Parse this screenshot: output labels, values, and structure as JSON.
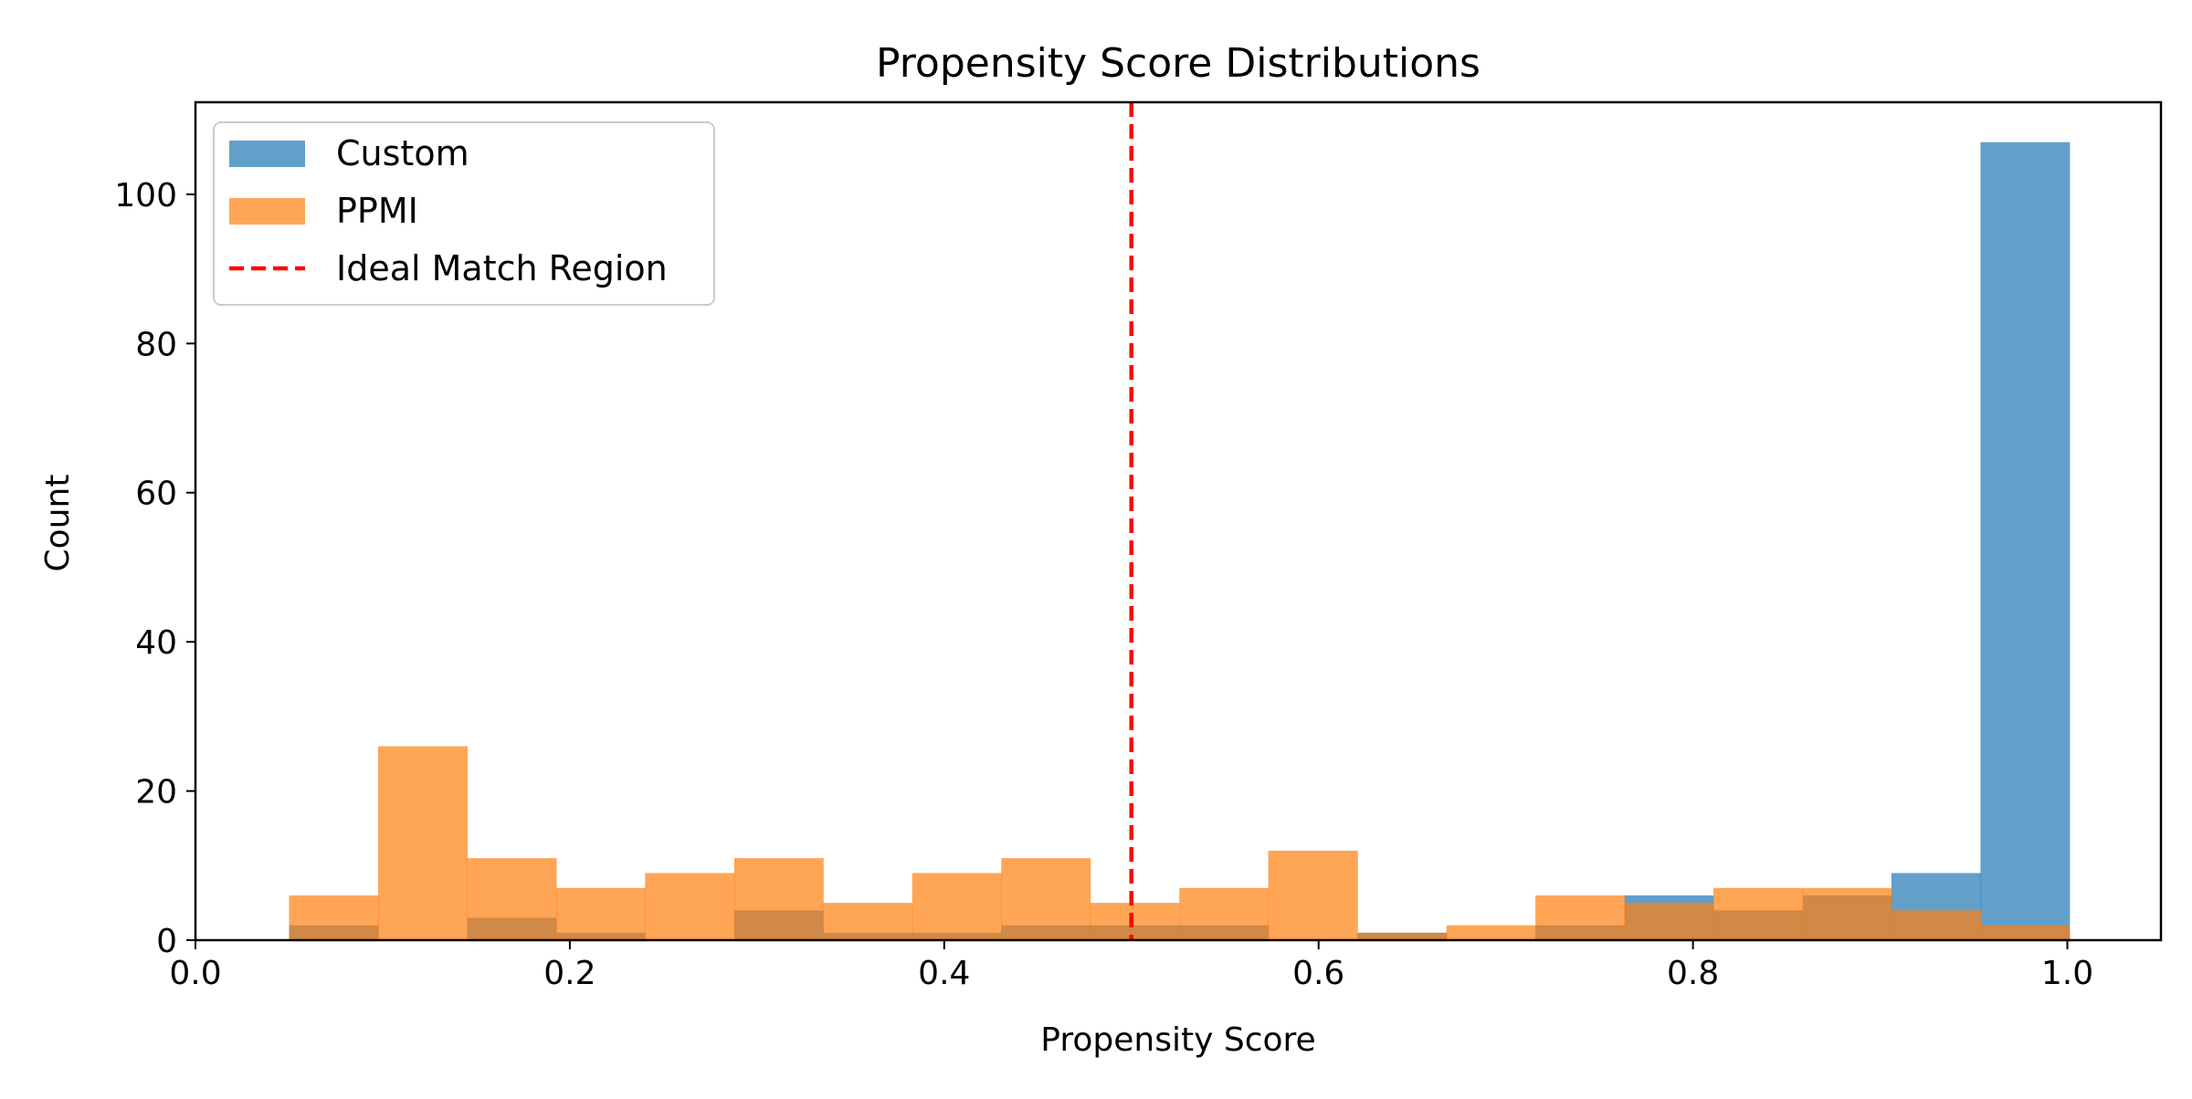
{
  "chart_data": {
    "type": "bar",
    "title": "Propensity Score Distributions",
    "xlabel": "Propensity Score",
    "ylabel": "Count",
    "xlim": [
      0.0,
      1.05
    ],
    "ylim": [
      0,
      112.35
    ],
    "xticks": [
      0.0,
      0.2,
      0.4,
      0.6,
      0.8,
      1.0
    ],
    "xtick_labels": [
      "0.0",
      "0.2",
      "0.4",
      "0.6",
      "0.8",
      "1.0"
    ],
    "yticks": [
      0,
      20,
      40,
      60,
      80,
      100
    ],
    "ytick_labels": [
      "0",
      "20",
      "40",
      "60",
      "80",
      "100"
    ],
    "grid": false,
    "legend_position": "top-left",
    "bin_edges": [
      0.05,
      0.0976,
      0.1451,
      0.1927,
      0.2402,
      0.2878,
      0.3353,
      0.3829,
      0.4305,
      0.478,
      0.5256,
      0.5731,
      0.6207,
      0.6683,
      0.7158,
      0.7634,
      0.8109,
      0.8585,
      0.906,
      0.9536,
      1.0011
    ],
    "series": [
      {
        "name": "Custom",
        "color": "#1f77b4",
        "values": [
          2,
          0,
          3,
          1,
          0,
          4,
          1,
          1,
          2,
          2,
          2,
          0,
          1,
          0,
          2,
          6,
          4,
          6,
          9,
          107
        ]
      },
      {
        "name": "PPMI",
        "color": "#ff7f0e",
        "values": [
          6,
          26,
          11,
          7,
          9,
          11,
          5,
          9,
          11,
          5,
          7,
          12,
          1,
          2,
          6,
          5,
          7,
          7,
          4,
          2
        ]
      }
    ],
    "reference_line": {
      "name": "Ideal Match Region",
      "x": 0.5,
      "color": "#ff0000",
      "style": "dashed"
    }
  }
}
